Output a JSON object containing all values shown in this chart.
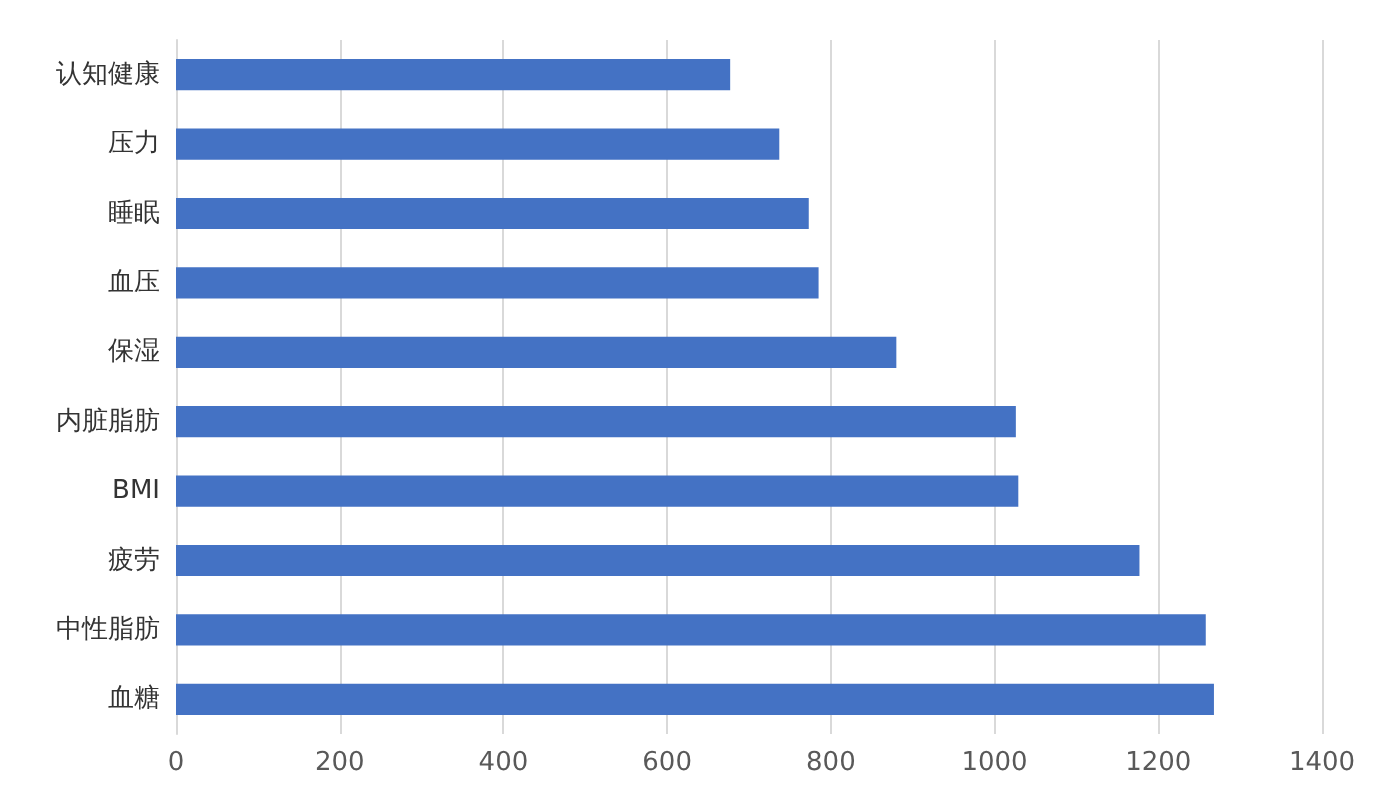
{
  "chart_data": {
    "type": "bar",
    "orientation": "horizontal",
    "categories": [
      "认知健康",
      "压力",
      "睡眠",
      "血压",
      "保湿",
      "内脏脂肪",
      "BMI",
      "疲劳",
      "中性脂肪",
      "血糖"
    ],
    "values": [
      677,
      737,
      773,
      785,
      880,
      1026,
      1029,
      1177,
      1258,
      1268
    ],
    "color": "#4472c4",
    "xlim": [
      0,
      1400
    ],
    "xticks": [
      0,
      200,
      400,
      600,
      800,
      1000,
      1200,
      1400
    ],
    "grid": "x"
  }
}
